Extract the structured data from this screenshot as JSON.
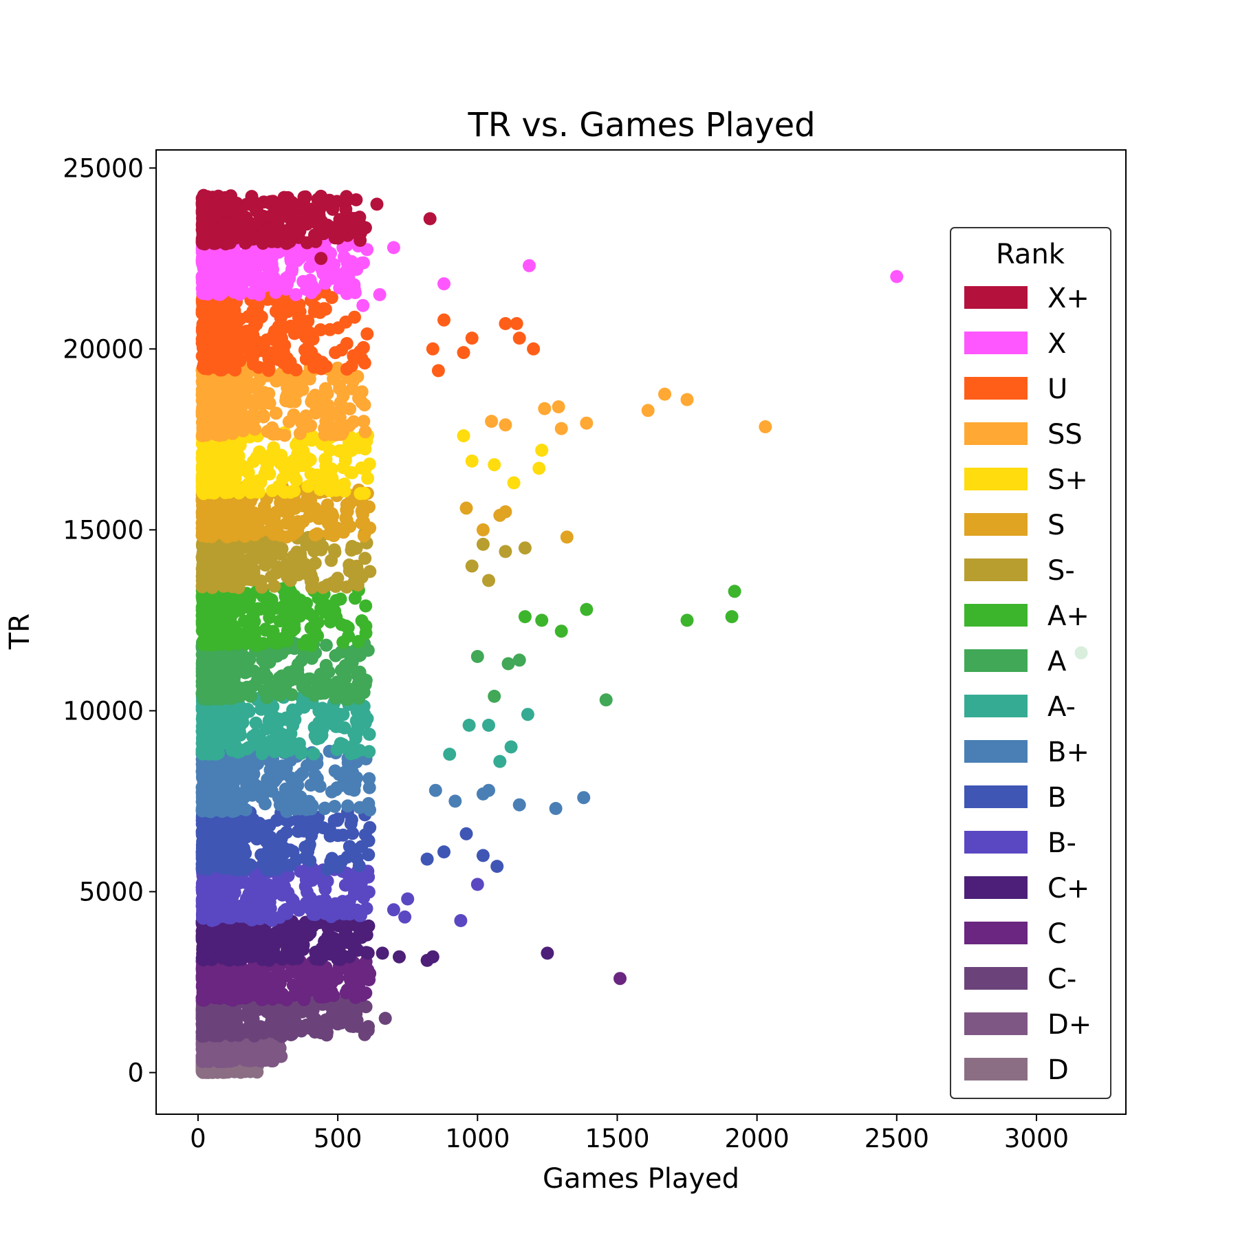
{
  "chart_data": {
    "type": "scatter",
    "title": "TR vs. Games Played",
    "xlabel": "Games Played",
    "ylabel": "TR",
    "xlim": [
      -150,
      3320
    ],
    "ylim": [
      -1150,
      25500
    ],
    "xticks": [
      0,
      500,
      1000,
      1500,
      2000,
      2500,
      3000
    ],
    "xtick_labels": [
      "0",
      "500",
      "1000",
      "1500",
      "2000",
      "2500",
      "3000"
    ],
    "yticks": [
      0,
      5000,
      10000,
      15000,
      20000,
      25000
    ],
    "ytick_labels": [
      "0",
      "5000",
      "10000",
      "15000",
      "20000",
      "25000"
    ],
    "grid": false,
    "legend": {
      "title": "Rank",
      "position": "right"
    },
    "series": [
      {
        "name": "X+",
        "color": "#b5113d",
        "tr_range": [
          22900,
          24250
        ],
        "gp_range": [
          25,
          680
        ],
        "outliers": [
          [
            830,
            23600
          ],
          [
            480,
            23300
          ],
          [
            640,
            24000
          ],
          [
            580,
            23000
          ],
          [
            440,
            22500
          ]
        ]
      },
      {
        "name": "X",
        "color": "#ff57ff",
        "tr_range": [
          21500,
          23000
        ],
        "gp_range": [
          20,
          760
        ],
        "outliers": [
          [
            2500,
            22000
          ],
          [
            1185,
            22300
          ],
          [
            880,
            21800
          ],
          [
            700,
            22800
          ],
          [
            650,
            21500
          ],
          [
            590,
            21200
          ]
        ]
      },
      {
        "name": "U",
        "color": "#ff5e19",
        "tr_range": [
          19400,
          21600
        ],
        "gp_range": [
          0,
          1230
        ],
        "outliers": [
          [
            1200,
            20000
          ],
          [
            1140,
            20700
          ],
          [
            1100,
            20700
          ],
          [
            1150,
            20300
          ],
          [
            980,
            20300
          ],
          [
            950,
            19900
          ],
          [
            880,
            20800
          ],
          [
            840,
            20000
          ],
          [
            860,
            19400
          ]
        ]
      },
      {
        "name": "SS",
        "color": "#ffa833",
        "tr_range": [
          17600,
          19500
        ],
        "gp_range": [
          0,
          1320
        ],
        "outliers": [
          [
            2030,
            17850
          ],
          [
            1750,
            18600
          ],
          [
            1670,
            18750
          ],
          [
            1610,
            18300
          ],
          [
            1390,
            17950
          ],
          [
            1290,
            18400
          ],
          [
            1240,
            18350
          ],
          [
            1300,
            17800
          ],
          [
            1100,
            17900
          ],
          [
            1050,
            18000
          ]
        ]
      },
      {
        "name": "S+",
        "color": "#ffdc0d",
        "tr_range": [
          16000,
          17700
        ],
        "gp_range": [
          0,
          1240
        ],
        "outliers": [
          [
            1230,
            17200
          ],
          [
            1220,
            16700
          ],
          [
            1130,
            16300
          ],
          [
            1060,
            16800
          ],
          [
            980,
            16900
          ],
          [
            950,
            17600
          ]
        ]
      },
      {
        "name": "S",
        "color": "#e0a322",
        "tr_range": [
          14800,
          16200
        ],
        "gp_range": [
          0,
          1330
        ],
        "outliers": [
          [
            1320,
            14800
          ],
          [
            1100,
            15500
          ],
          [
            1020,
            15000
          ],
          [
            1080,
            15400
          ],
          [
            960,
            15600
          ]
        ]
      },
      {
        "name": "S-",
        "color": "#b89e2f",
        "tr_range": [
          13400,
          14900
        ],
        "gp_range": [
          0,
          1180
        ],
        "outliers": [
          [
            1170,
            14500
          ],
          [
            1100,
            14400
          ],
          [
            1040,
            13600
          ],
          [
            1020,
            14600
          ],
          [
            980,
            14000
          ]
        ]
      },
      {
        "name": "A+",
        "color": "#3cb52c",
        "tr_range": [
          11800,
          13400
        ],
        "gp_range": [
          0,
          1930
        ],
        "outliers": [
          [
            1920,
            13300
          ],
          [
            1910,
            12600
          ],
          [
            1750,
            12500
          ],
          [
            1390,
            12800
          ],
          [
            1300,
            12200
          ],
          [
            1230,
            12500
          ],
          [
            1170,
            12600
          ]
        ]
      },
      {
        "name": "A",
        "color": "#40a856",
        "tr_range": [
          10300,
          11900
        ],
        "gp_range": [
          0,
          3170
        ],
        "outliers": [
          [
            3160,
            11600
          ],
          [
            1460,
            10300
          ],
          [
            1150,
            11400
          ],
          [
            1110,
            11300
          ],
          [
            1060,
            10400
          ],
          [
            1000,
            11500
          ]
        ]
      },
      {
        "name": "A-",
        "color": "#35ab93",
        "tr_range": [
          8800,
          10400
        ],
        "gp_range": [
          0,
          1190
        ],
        "outliers": [
          [
            1180,
            9900
          ],
          [
            1120,
            9000
          ],
          [
            1080,
            8600
          ],
          [
            1040,
            9600
          ],
          [
            970,
            9600
          ],
          [
            900,
            8800
          ]
        ]
      },
      {
        "name": "B+",
        "color": "#4a7fb5",
        "tr_range": [
          7200,
          8900
        ],
        "gp_range": [
          0,
          1390
        ],
        "outliers": [
          [
            1380,
            7600
          ],
          [
            1280,
            7300
          ],
          [
            1150,
            7400
          ],
          [
            1040,
            7800
          ],
          [
            1020,
            7700
          ],
          [
            920,
            7500
          ],
          [
            850,
            7800
          ]
        ]
      },
      {
        "name": "B",
        "color": "#3f56b5",
        "tr_range": [
          5600,
          7200
        ],
        "gp_range": [
          0,
          1070
        ],
        "outliers": [
          [
            1070,
            5700
          ],
          [
            1020,
            6000
          ],
          [
            960,
            6600
          ],
          [
            880,
            6100
          ],
          [
            820,
            5900
          ]
        ]
      },
      {
        "name": "B-",
        "color": "#5a48c2",
        "tr_range": [
          4200,
          5700
        ],
        "gp_range": [
          0,
          1010
        ],
        "outliers": [
          [
            1000,
            5200
          ],
          [
            940,
            4200
          ],
          [
            750,
            4800
          ],
          [
            700,
            4500
          ],
          [
            740,
            4300
          ]
        ]
      },
      {
        "name": "C+",
        "color": "#4d1f78",
        "tr_range": [
          3100,
          4200
        ],
        "gp_range": [
          0,
          1260
        ],
        "outliers": [
          [
            1250,
            3300
          ],
          [
            840,
            3200
          ],
          [
            820,
            3100
          ],
          [
            720,
            3200
          ],
          [
            660,
            3300
          ]
        ]
      },
      {
        "name": "C",
        "color": "#6a2680",
        "tr_range": [
          2000,
          3100
        ],
        "gp_range": [
          0,
          1520
        ],
        "outliers": [
          [
            1510,
            2600
          ],
          [
            600,
            2200
          ],
          [
            560,
            2300
          ],
          [
            480,
            2500
          ]
        ]
      },
      {
        "name": "C-",
        "color": "#6b437a",
        "tr_range": [
          1000,
          2000
        ],
        "gp_range": [
          0,
          680
        ],
        "outliers": [
          [
            670,
            1500
          ],
          [
            480,
            1600
          ],
          [
            440,
            1100
          ],
          [
            360,
            1300
          ],
          [
            300,
            1000
          ]
        ]
      },
      {
        "name": "D+",
        "color": "#7e5784",
        "tr_range": [
          300,
          1000
        ],
        "gp_range": [
          0,
          300
        ],
        "outliers": [
          [
            280,
            1000
          ],
          [
            240,
            800
          ],
          [
            180,
            700
          ]
        ]
      },
      {
        "name": "D",
        "color": "#8b6e84",
        "tr_range": [
          0,
          300
        ],
        "gp_range": [
          0,
          200
        ],
        "outliers": [
          [
            120,
            200
          ],
          [
            80,
            300
          ]
        ]
      }
    ]
  }
}
